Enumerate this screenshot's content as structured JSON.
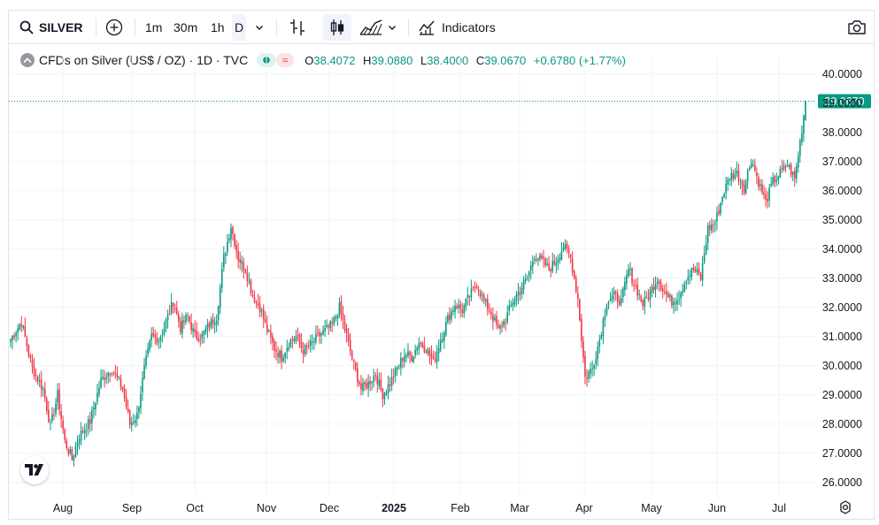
{
  "toolbar": {
    "symbol": "SILVER",
    "intervals": [
      "1m",
      "30m",
      "1h",
      "D"
    ],
    "active_interval": "D",
    "indicators_label": "Indicators",
    "icons": [
      "search-icon",
      "add-symbol-icon",
      "chevron-down-icon",
      "bar-style-icon",
      "candle-style-icon",
      "area-style-icon",
      "chevron-down-icon",
      "indicators-icon",
      "camera-icon"
    ]
  },
  "legend": {
    "title": "CFDs on Silver (US$ / OZ) · 1D · TVC",
    "o_label": "O",
    "o_value": "38.4072",
    "h_label": "H",
    "h_value": "39.0880",
    "l_label": "L",
    "l_value": "38.4000",
    "c_label": "C",
    "c_value": "39.0670",
    "change": "+0.6780 (+1.77%)"
  },
  "colors": {
    "up": "#089981",
    "down": "#f23645",
    "grid": "#f0f3fa",
    "text": "#131722"
  },
  "chart_data": {
    "type": "candlestick",
    "title": "CFDs on Silver (US$ / OZ) · 1D · TVC",
    "xlabel": "",
    "ylabel": "",
    "ylim": [
      25.5,
      40.5
    ],
    "y_ticks": [
      "40.0000",
      "39.0000",
      "38.0000",
      "37.0000",
      "36.0000",
      "35.0000",
      "34.0000",
      "33.0000",
      "32.0000",
      "31.0000",
      "30.0000",
      "29.0000",
      "28.0000",
      "27.0000",
      "26.0000"
    ],
    "x_ticks": [
      "Aug",
      "Sep",
      "Oct",
      "Nov",
      "Dec",
      "2025",
      "Feb",
      "Mar",
      "Apr",
      "May",
      "Jun",
      "Jul"
    ],
    "last_price": "39.0670",
    "grid": true,
    "legend_position": "top-left",
    "anchors": [
      [
        0,
        30.9
      ],
      [
        6,
        31.5
      ],
      [
        12,
        29.9
      ],
      [
        18,
        29.2
      ],
      [
        22,
        27.9
      ],
      [
        26,
        29.0
      ],
      [
        30,
        27.4
      ],
      [
        34,
        26.8
      ],
      [
        38,
        27.6
      ],
      [
        44,
        28.1
      ],
      [
        50,
        29.5
      ],
      [
        56,
        29.9
      ],
      [
        62,
        29.2
      ],
      [
        66,
        28.0
      ],
      [
        70,
        28.3
      ],
      [
        74,
        29.9
      ],
      [
        78,
        31.0
      ],
      [
        82,
        30.9
      ],
      [
        86,
        31.5
      ],
      [
        90,
        32.2
      ],
      [
        94,
        31.3
      ],
      [
        98,
        31.7
      ],
      [
        102,
        31.0
      ],
      [
        106,
        31.0
      ],
      [
        110,
        31.4
      ],
      [
        114,
        31.7
      ],
      [
        118,
        33.7
      ],
      [
        122,
        34.8
      ],
      [
        126,
        33.7
      ],
      [
        130,
        33.3
      ],
      [
        134,
        32.4
      ],
      [
        138,
        32.0
      ],
      [
        142,
        31.2
      ],
      [
        146,
        30.6
      ],
      [
        150,
        30.3
      ],
      [
        154,
        30.8
      ],
      [
        158,
        31.0
      ],
      [
        162,
        30.5
      ],
      [
        166,
        30.7
      ],
      [
        170,
        31.0
      ],
      [
        174,
        31.2
      ],
      [
        178,
        31.4
      ],
      [
        182,
        32.0
      ],
      [
        186,
        31.0
      ],
      [
        190,
        30.0
      ],
      [
        194,
        29.2
      ],
      [
        198,
        29.4
      ],
      [
        202,
        29.7
      ],
      [
        206,
        29.0
      ],
      [
        210,
        29.4
      ],
      [
        214,
        29.9
      ],
      [
        218,
        30.4
      ],
      [
        222,
        30.3
      ],
      [
        226,
        30.8
      ],
      [
        230,
        30.6
      ],
      [
        234,
        30.1
      ],
      [
        238,
        30.9
      ],
      [
        242,
        31.6
      ],
      [
        246,
        32.1
      ],
      [
        250,
        31.9
      ],
      [
        254,
        32.4
      ],
      [
        258,
        32.8
      ],
      [
        262,
        32.2
      ],
      [
        266,
        31.8
      ],
      [
        270,
        31.2
      ],
      [
        274,
        31.6
      ],
      [
        278,
        32.2
      ],
      [
        282,
        32.6
      ],
      [
        286,
        33.0
      ],
      [
        290,
        33.8
      ],
      [
        294,
        33.6
      ],
      [
        298,
        33.3
      ],
      [
        302,
        33.6
      ],
      [
        306,
        34.1
      ],
      [
        310,
        33.7
      ],
      [
        314,
        32.3
      ],
      [
        318,
        29.6
      ],
      [
        322,
        29.9
      ],
      [
        326,
        30.9
      ],
      [
        330,
        32.2
      ],
      [
        334,
        32.4
      ],
      [
        338,
        32.2
      ],
      [
        342,
        33.3
      ],
      [
        346,
        32.7
      ],
      [
        350,
        32.1
      ],
      [
        354,
        32.5
      ],
      [
        358,
        33.0
      ],
      [
        362,
        32.5
      ],
      [
        366,
        32.2
      ],
      [
        370,
        32.4
      ],
      [
        374,
        33.0
      ],
      [
        378,
        33.3
      ],
      [
        382,
        33.0
      ],
      [
        386,
        34.7
      ],
      [
        390,
        34.9
      ],
      [
        394,
        35.8
      ],
      [
        398,
        36.5
      ],
      [
        402,
        36.6
      ],
      [
        406,
        36.1
      ],
      [
        410,
        37.1
      ],
      [
        414,
        36.3
      ],
      [
        418,
        35.6
      ],
      [
        422,
        36.3
      ],
      [
        426,
        36.6
      ],
      [
        430,
        36.9
      ],
      [
        434,
        36.4
      ],
      [
        438,
        38.1
      ],
      [
        440,
        39.07
      ]
    ]
  }
}
